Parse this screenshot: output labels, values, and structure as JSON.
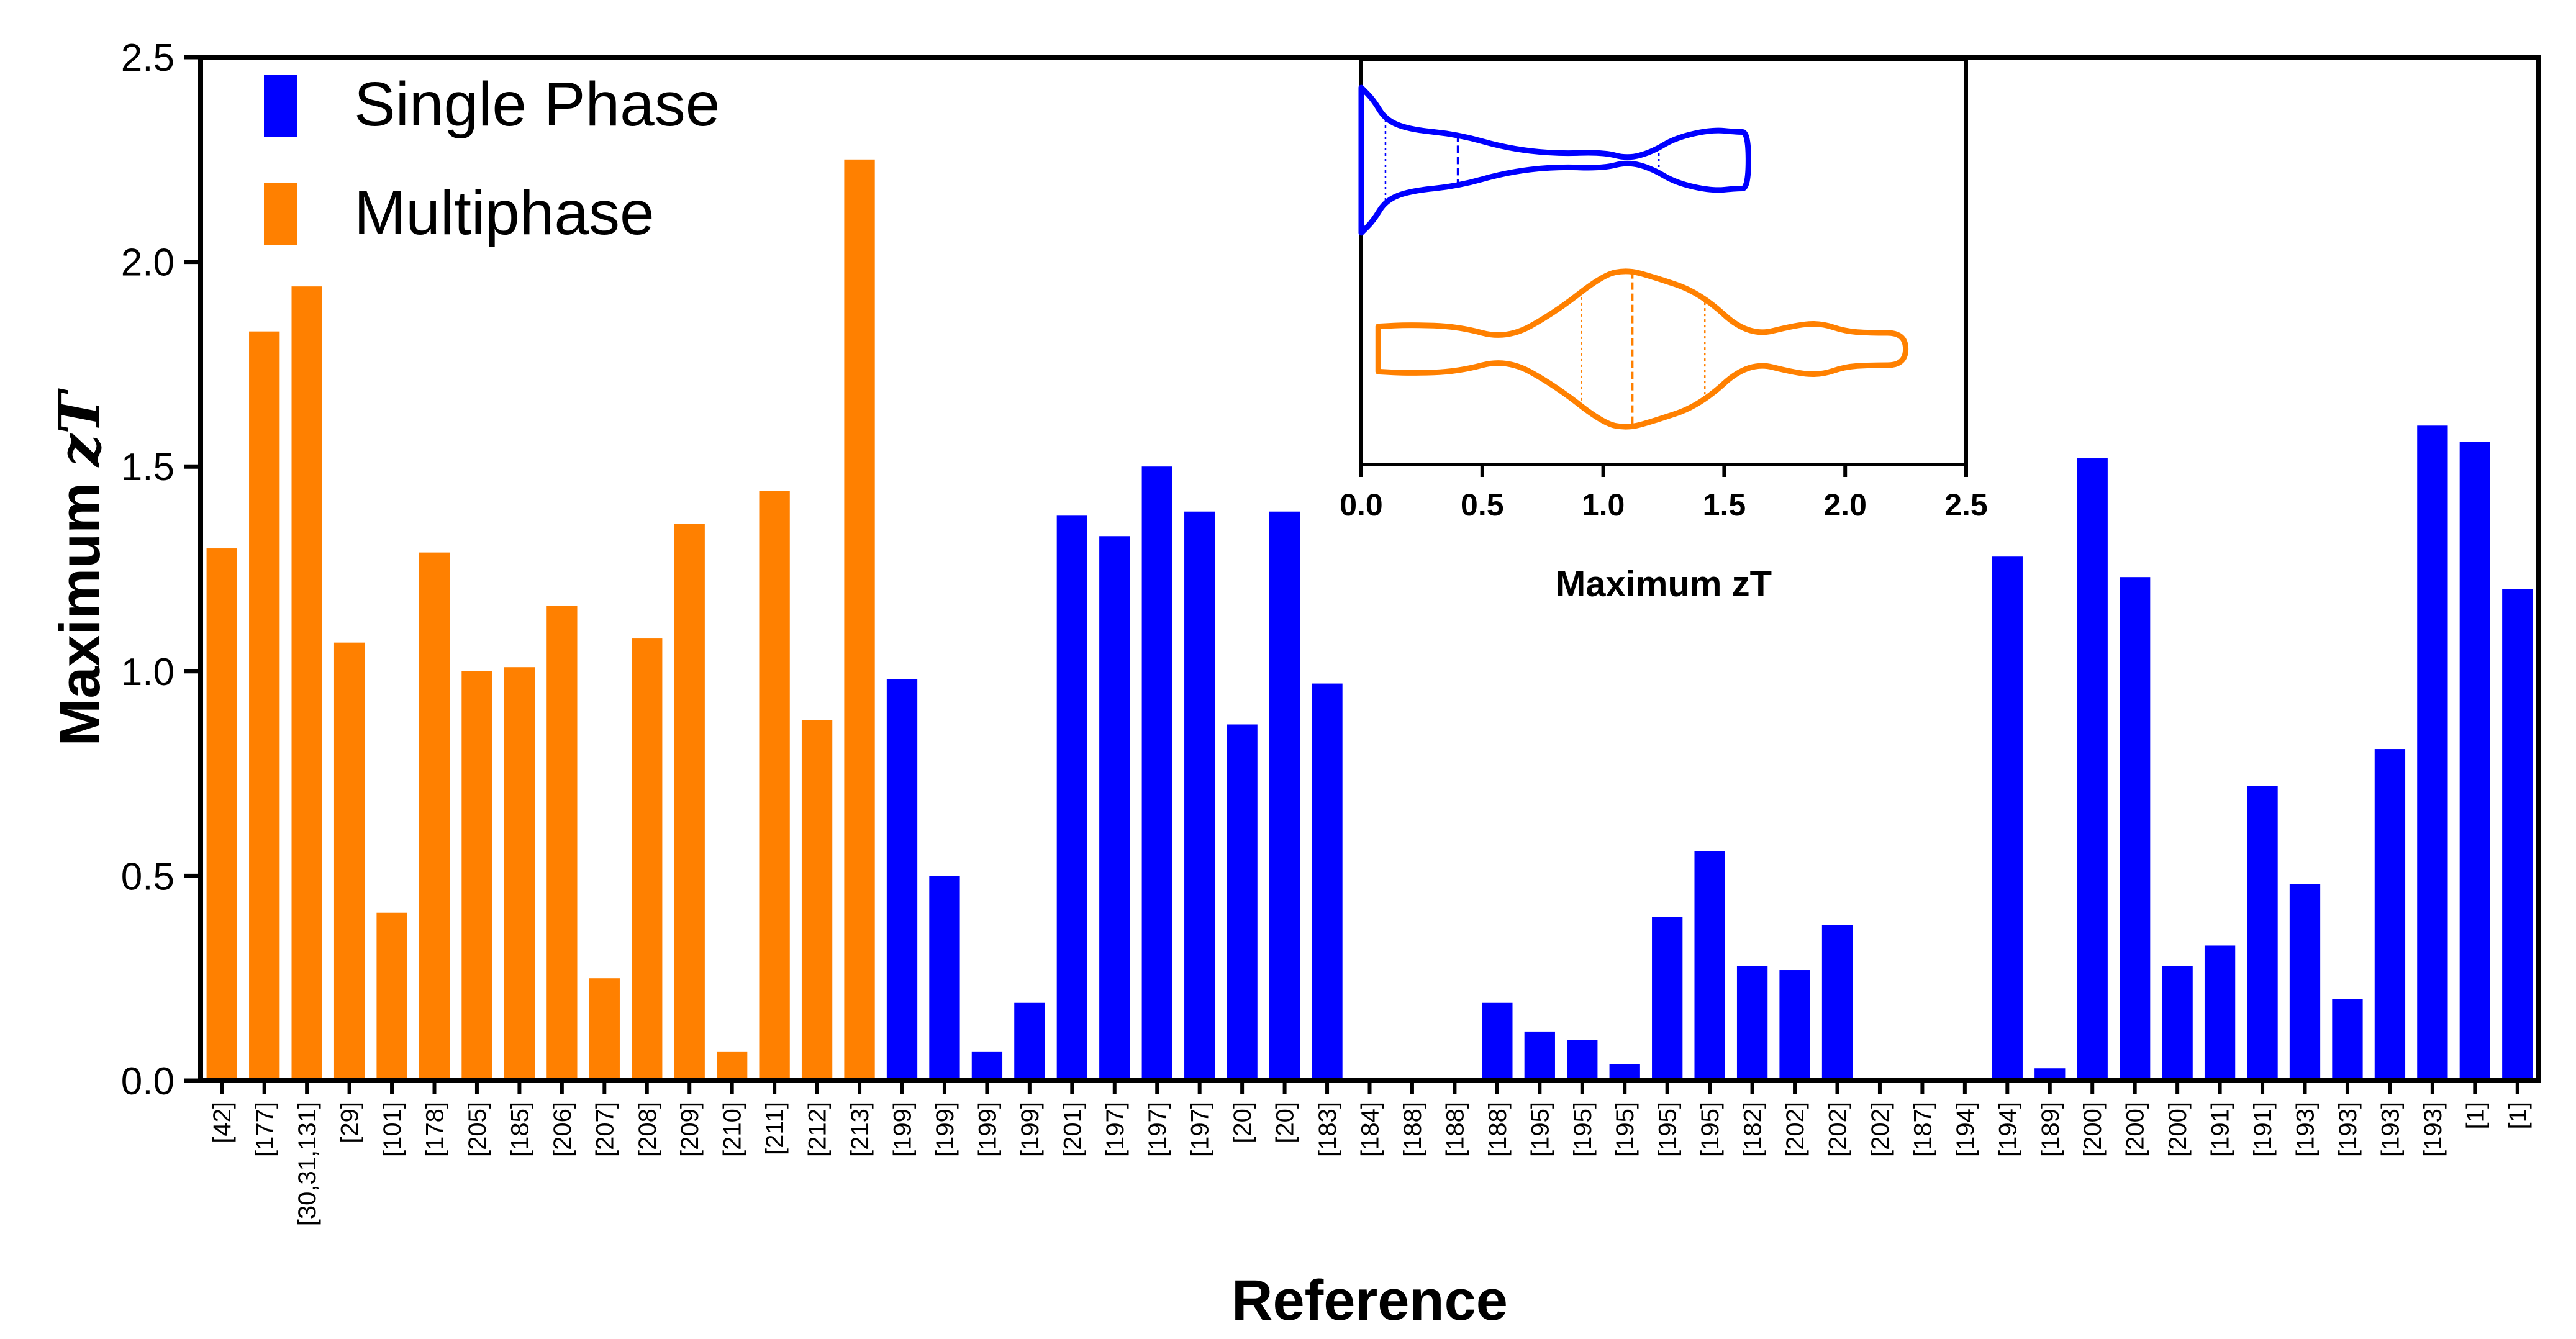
{
  "chart_data": [
    {
      "type": "bar",
      "title": "",
      "xlabel": "Reference",
      "ylabel": "Maximum zT",
      "ylabel_parts": [
        "Maximum ",
        "zT"
      ],
      "ylim": [
        0,
        2.5
      ],
      "yticks": [
        "0.0",
        "0.5",
        "1.0",
        "1.5",
        "2.0",
        "2.5"
      ],
      "legend": [
        {
          "name": "Single Phase",
          "color": "#0000ff"
        },
        {
          "name": "Multiphase",
          "color": "#ff8000"
        }
      ],
      "colors": {
        "single": "#0000ff",
        "multi": "#ff8000"
      },
      "categories": [
        "[42]",
        "[177]",
        "[30,31,131]",
        "[29]",
        "[101]",
        "[178]",
        "[205]",
        "[185]",
        "[206]",
        "[207]",
        "[208]",
        "[209]",
        "[210]",
        "[211]",
        "[212]",
        "[213]",
        "[199]",
        "[199]",
        "[199]",
        "[199]",
        "[201]",
        "[197]",
        "[197]",
        "[197]",
        "[20]",
        "[20]",
        "[183]",
        "[184]",
        "[188]",
        "[188]",
        "[188]",
        "[195]",
        "[195]",
        "[195]",
        "[195]",
        "[195]",
        "[182]",
        "[202]",
        "[202]",
        "[202]",
        "[187]",
        "[194]",
        "[194]",
        "[189]",
        "[200]",
        "[200]",
        "[200]",
        "[191]",
        "[191]",
        "[193]",
        "[193]",
        "[193]",
        "[193]",
        "[1]",
        "[1]"
      ],
      "values": [
        1.3,
        1.83,
        1.94,
        1.07,
        0.41,
        1.29,
        1.0,
        1.01,
        1.16,
        0.25,
        1.08,
        1.36,
        0.07,
        1.44,
        0.88,
        2.25,
        0.98,
        0.5,
        0.07,
        0.19,
        1.38,
        1.33,
        1.5,
        1.39,
        0.87,
        1.39,
        0.97,
        0,
        0,
        0,
        0.19,
        0.12,
        0.1,
        0.04,
        0.4,
        0.56,
        0.28,
        0.27,
        0.38,
        0,
        0,
        0,
        1.28,
        0.03,
        1.52,
        1.23,
        0.28,
        0.33,
        0.72,
        0.48,
        0.2,
        0.81,
        1.6,
        1.56,
        1.2
      ],
      "groups": [
        "multi",
        "multi",
        "multi",
        "multi",
        "multi",
        "multi",
        "multi",
        "multi",
        "multi",
        "multi",
        "multi",
        "multi",
        "multi",
        "multi",
        "multi",
        "multi",
        "single",
        "single",
        "single",
        "single",
        "single",
        "single",
        "single",
        "single",
        "single",
        "single",
        "single",
        "single",
        "single",
        "single",
        "single",
        "single",
        "single",
        "single",
        "single",
        "single",
        "single",
        "single",
        "single",
        "single",
        "single",
        "single",
        "single",
        "single",
        "single",
        "single",
        "single",
        "single",
        "single",
        "single",
        "single",
        "single",
        "single",
        "single",
        "single"
      ]
    },
    {
      "type": "violin",
      "title": "",
      "xlabel": "Maximum zT",
      "xlim": [
        0,
        2.5
      ],
      "xticks": [
        "0.0",
        "0.5",
        "1.0",
        "1.5",
        "2.0",
        "2.5"
      ],
      "series": [
        {
          "name": "Single Phase",
          "color": "#0000ff",
          "min": 0.0,
          "max": 1.6,
          "quartiles": [
            0.1,
            0.4,
            1.23
          ],
          "density_x": [
            0.0,
            0.05,
            0.1,
            0.2,
            0.4,
            0.6,
            0.8,
            1.0,
            1.1,
            1.2,
            1.3,
            1.45,
            1.55,
            1.6
          ],
          "density_w": [
            0.9,
            0.75,
            0.5,
            0.38,
            0.32,
            0.15,
            0.08,
            0.1,
            0.02,
            0.1,
            0.28,
            0.38,
            0.35,
            0.35
          ]
        },
        {
          "name": "Multiphase",
          "color": "#ff8000",
          "min": 0.07,
          "max": 2.25,
          "quartiles": [
            0.91,
            1.12,
            1.42
          ],
          "density_x": [
            0.07,
            0.2,
            0.4,
            0.6,
            0.8,
            1.0,
            1.1,
            1.2,
            1.4,
            1.6,
            1.8,
            1.9,
            2.0,
            2.1,
            2.25
          ],
          "density_w": [
            0.28,
            0.3,
            0.28,
            0.12,
            0.45,
            0.92,
            0.98,
            0.9,
            0.7,
            0.15,
            0.3,
            0.32,
            0.22,
            0.2,
            0.2
          ]
        }
      ]
    }
  ]
}
